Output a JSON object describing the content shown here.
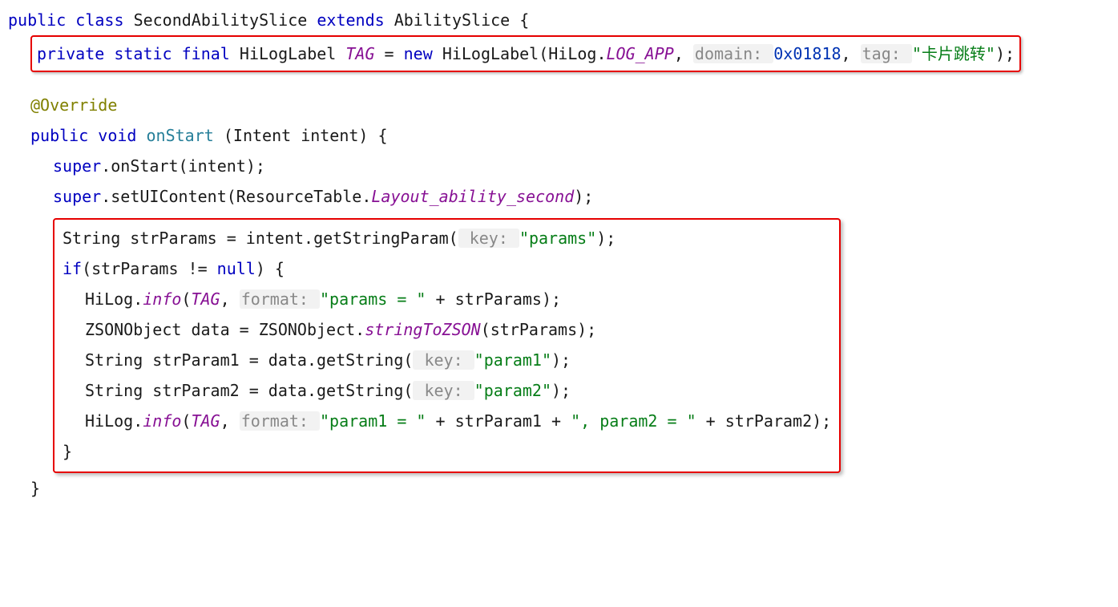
{
  "kw": {
    "public": "public",
    "class": "class",
    "extends": "extends",
    "private": "private",
    "static": "static",
    "final": "final",
    "new": "new",
    "void": "void",
    "if": "if",
    "null": "null",
    "super": "super"
  },
  "decl": {
    "className": "SecondAbilitySlice",
    "superClass": "AbilitySlice",
    "openBrace": " {"
  },
  "tagLine": {
    "type": "HiLogLabel",
    "name": "TAG",
    "eq": " = ",
    "ctor": "HiLogLabel(HiLog.",
    "logApp": "LOG_APP",
    "comma1": ", ",
    "hintDomain": " domain: ",
    "domainVal": "0x01818",
    "comma2": ", ",
    "hintTag": " tag: ",
    "tagStr": "\"卡片跳转\"",
    "end": ");"
  },
  "override": "@Override",
  "onStart": {
    "name": "onStart",
    "params": "(Intent intent) {"
  },
  "l1": {
    "prefix": ".onStart(intent);"
  },
  "l2": {
    "prefix": ".setUIContent(ResourceTable.",
    "layout": "Layout_ability_second",
    "end": ");"
  },
  "box": {
    "b1": {
      "lead": "String strParams = intent.getStringParam(",
      "hint": " key: ",
      "str": "\"params\"",
      "end": ");"
    },
    "b2": {
      "lead": "(strParams != ",
      "end": ") {"
    },
    "b3": {
      "lead": "HiLog.",
      "info": "info",
      "open": "(",
      "tag": "TAG",
      "comma": ", ",
      "hint": " format: ",
      "str": "\"params = \"",
      "plus": " + strParams);"
    },
    "b4": {
      "lead": "ZSONObject data = ZSONObject.",
      "m": "stringToZSON",
      "end": "(strParams);"
    },
    "b5": {
      "lead": "String strParam1 = data.getString(",
      "hint": " key: ",
      "str": "\"param1\"",
      "end": ");"
    },
    "b6": {
      "lead": "String strParam2 = data.getString(",
      "hint": " key: ",
      "str": "\"param2\"",
      "end": ");"
    },
    "b7": {
      "lead": "HiLog.",
      "info": "info",
      "open": "(",
      "tag": "TAG",
      "comma": ", ",
      "hint": " format: ",
      "str1": "\"param1 = \"",
      "mid": " + strParam1 + ",
      "str2": "\", param2 = \"",
      "tail": " + strParam2);"
    },
    "close": "}"
  },
  "closeMethod": "}"
}
